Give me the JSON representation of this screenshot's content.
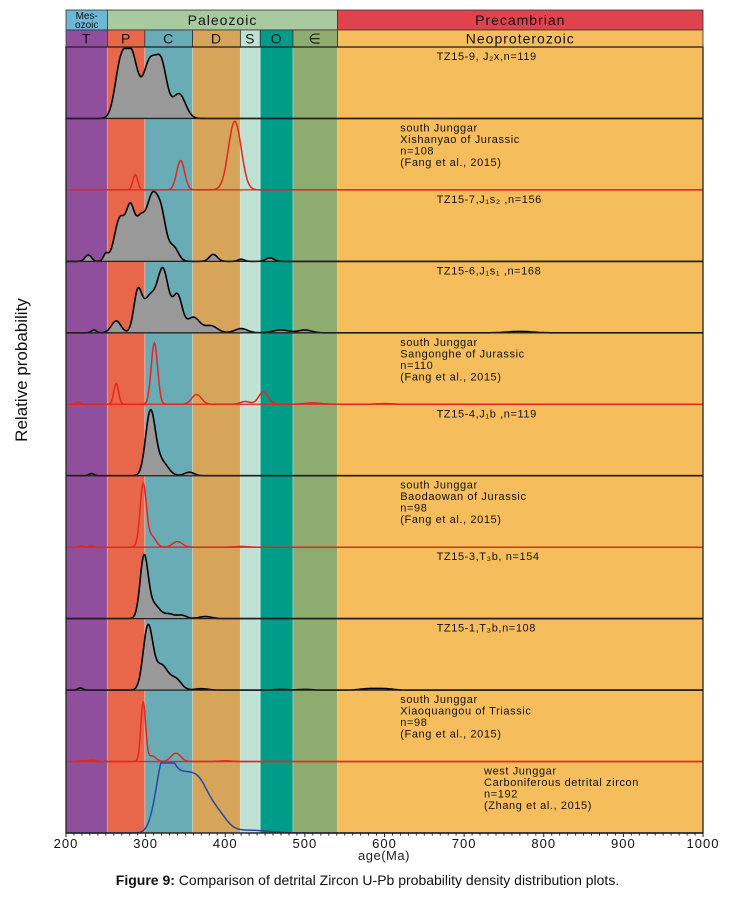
{
  "chart_data": {
    "type": "area",
    "title": "",
    "xlabel": "age(Ma)",
    "ylabel": "Relative probability",
    "xlim": [
      200,
      1000
    ],
    "x_ticks": [
      200,
      300,
      400,
      500,
      600,
      700,
      800,
      900,
      1000
    ],
    "minor_tick_step": 10,
    "grid": false,
    "timescale": {
      "eras": [
        {
          "label": "Mes-\nozoic",
          "line1": "Mes-",
          "line2": "ozoic",
          "from": 200,
          "to": 252,
          "color": "#6bb8d6"
        },
        {
          "label": "Paleozoic",
          "from": 252,
          "to": 541,
          "color": "#a9c9a0"
        },
        {
          "label": "Precambrian",
          "from": 541,
          "to": 1000,
          "color": "#e0434e"
        }
      ],
      "periods": [
        {
          "label": "T",
          "from": 200,
          "to": 252,
          "color": "#8f4f9c"
        },
        {
          "label": "P",
          "from": 252,
          "to": 299,
          "color": "#e8674a"
        },
        {
          "label": "C",
          "from": 299,
          "to": 359,
          "color": "#69acb6"
        },
        {
          "label": "D",
          "from": 359,
          "to": 419,
          "color": "#d6a55a"
        },
        {
          "label": "S",
          "from": 419,
          "to": 444,
          "color": "#bfe2d4"
        },
        {
          "label": "O",
          "from": 444,
          "to": 485,
          "color": "#009c8a"
        },
        {
          "label": "∈",
          "from": 485,
          "to": 541,
          "color": "#8fac70"
        },
        {
          "label": "Neoproterozoic",
          "from": 541,
          "to": 1000,
          "color": "#f5bd5c"
        }
      ]
    },
    "series": [
      {
        "name": "TZ15-9, J₂x, n=119",
        "label_lines": [
          "TZ15-9, J₂x,n=119"
        ],
        "style": "filled",
        "color": "#000000",
        "fill": "#999999",
        "peaks": [
          [
            268,
            0.68,
            7
          ],
          [
            282,
            0.9,
            8
          ],
          [
            305,
            0.78,
            8
          ],
          [
            320,
            0.72,
            7
          ],
          [
            342,
            0.35,
            8
          ]
        ]
      },
      {
        "name": "south Junggar Xishanyao of Jurassic n=108 (Fang et al., 2015)",
        "label_lines": [
          "south Junggar",
          "Xishanyao of Jurassic",
          "n=108",
          "(Fang et al., 2015)"
        ],
        "style": "line",
        "color": "#e3261f",
        "peaks": [
          [
            287,
            0.22,
            3
          ],
          [
            344,
            0.42,
            5
          ],
          [
            412,
            0.98,
            8
          ]
        ]
      },
      {
        "name": "TZ15-7, J₁s₂, n=156",
        "label_lines": [
          "TZ15-7,J₁s₂ ,n=156"
        ],
        "style": "filled",
        "color": "#000000",
        "fill": "#999999",
        "peaks": [
          [
            228,
            0.09,
            4
          ],
          [
            250,
            0.1,
            3
          ],
          [
            268,
            0.62,
            7
          ],
          [
            281,
            0.65,
            5
          ],
          [
            293,
            0.55,
            6
          ],
          [
            308,
            0.88,
            7
          ],
          [
            320,
            0.58,
            6
          ],
          [
            335,
            0.2,
            6
          ],
          [
            385,
            0.1,
            5
          ],
          [
            420,
            0.03,
            4
          ],
          [
            456,
            0.05,
            5
          ]
        ]
      },
      {
        "name": "TZ15-6, J₁s₁, n=168",
        "label_lines": [
          "TZ15-6,J₁s₁ ,n=168"
        ],
        "style": "filled",
        "color": "#000000",
        "fill": "#999999",
        "peaks": [
          [
            235,
            0.04,
            3
          ],
          [
            263,
            0.17,
            6
          ],
          [
            290,
            0.55,
            5
          ],
          [
            305,
            0.5,
            8
          ],
          [
            322,
            0.87,
            7
          ],
          [
            340,
            0.52,
            6
          ],
          [
            360,
            0.22,
            8
          ],
          [
            382,
            0.1,
            8
          ],
          [
            420,
            0.06,
            8
          ],
          [
            470,
            0.04,
            10
          ],
          [
            500,
            0.04,
            8
          ],
          [
            770,
            0.02,
            15
          ]
        ]
      },
      {
        "name": "south Junggar Sangonghe of Jurassic n=110 (Fang et al., 2015)",
        "label_lines": [
          "south Junggar",
          "Sangonghe of Jurassic",
          "n=110",
          "(Fang et al., 2015)"
        ],
        "style": "line",
        "color": "#e3261f",
        "peaks": [
          [
            215,
            0.03,
            3
          ],
          [
            263,
            0.3,
            3
          ],
          [
            311,
            0.88,
            4
          ],
          [
            364,
            0.14,
            6
          ],
          [
            425,
            0.04,
            6
          ],
          [
            448,
            0.18,
            6
          ],
          [
            510,
            0.02,
            10
          ],
          [
            600,
            0.01,
            10
          ]
        ]
      },
      {
        "name": "TZ15-4, J₁b, n=119",
        "label_lines": [
          "TZ15-4,J₁b ,n=119"
        ],
        "style": "filled",
        "color": "#000000",
        "fill": "#999999",
        "peaks": [
          [
            232,
            0.03,
            3
          ],
          [
            306,
            0.9,
            6
          ],
          [
            320,
            0.2,
            8
          ],
          [
            355,
            0.05,
            6
          ]
        ]
      },
      {
        "name": "south Junggar Baodaowan of Jurassic n=98 (Fang et al., 2015)",
        "label_lines": [
          "south Junggar",
          "Baodaowan of Jurassic",
          "n=98",
          "(Fang et al., 2015)"
        ],
        "style": "line",
        "color": "#e3261f",
        "peaks": [
          [
            220,
            0.02,
            3
          ],
          [
            232,
            0.02,
            3
          ],
          [
            297,
            0.9,
            4
          ],
          [
            308,
            0.15,
            5
          ],
          [
            340,
            0.08,
            6
          ],
          [
            420,
            0.01,
            8
          ]
        ]
      },
      {
        "name": "TZ15-3, T₃b, n=154",
        "label_lines": [
          "TZ15-3,T₃b, n=154"
        ],
        "style": "filled",
        "color": "#000000",
        "fill": "#999999",
        "peaks": [
          [
            298,
            0.85,
            5
          ],
          [
            310,
            0.2,
            8
          ],
          [
            330,
            0.06,
            6
          ],
          [
            345,
            0.05,
            6
          ],
          [
            375,
            0.03,
            8
          ]
        ]
      },
      {
        "name": "TZ15-1, T₃b, n=108",
        "label_lines": [
          "TZ15-1,T₃b,n=108"
        ],
        "style": "filled",
        "color": "#000000",
        "fill": "#999999",
        "peaks": [
          [
            218,
            0.03,
            3
          ],
          [
            303,
            0.9,
            6
          ],
          [
            320,
            0.35,
            8
          ],
          [
            338,
            0.15,
            7
          ],
          [
            370,
            0.02,
            8
          ],
          [
            470,
            0.01,
            8
          ],
          [
            500,
            0.01,
            8
          ],
          [
            580,
            0.02,
            10
          ],
          [
            600,
            0.02,
            10
          ]
        ]
      },
      {
        "name": "south Junggar Xiaoquangou of Triassic n=98 (Fang et al., 2015)",
        "label_lines": [
          "south Junggar",
          "Xiaoquangou of Triassic",
          "n=98",
          "(Fang et al., 2015)"
        ],
        "style": "line",
        "color": "#e3261f",
        "peaks": [
          [
            220,
            0.01,
            5
          ],
          [
            233,
            0.02,
            4
          ],
          [
            297,
            0.85,
            3
          ],
          [
            308,
            0.08,
            5
          ],
          [
            338,
            0.12,
            6
          ],
          [
            400,
            0.01,
            8
          ]
        ]
      },
      {
        "name": "west Junggar Carboniferous detrital zircon n=192 (Zhang et al., 2015)",
        "label_lines": [
          "west Junggar",
          "Carboniferous detrital zircon",
          "n=192",
          "(Zhang et al., 2015)"
        ],
        "style": "line",
        "color": "#2a47a6",
        "peaks": [
          [
            323,
            0.95,
            10
          ],
          [
            345,
            0.72,
            14
          ],
          [
            368,
            0.55,
            12
          ],
          [
            390,
            0.25,
            12
          ],
          [
            430,
            0.04,
            25
          ]
        ]
      }
    ]
  },
  "caption": {
    "label": "Figure 9:",
    "text": " Comparison of detrital Zircon U-Pb probability density distribution plots."
  }
}
